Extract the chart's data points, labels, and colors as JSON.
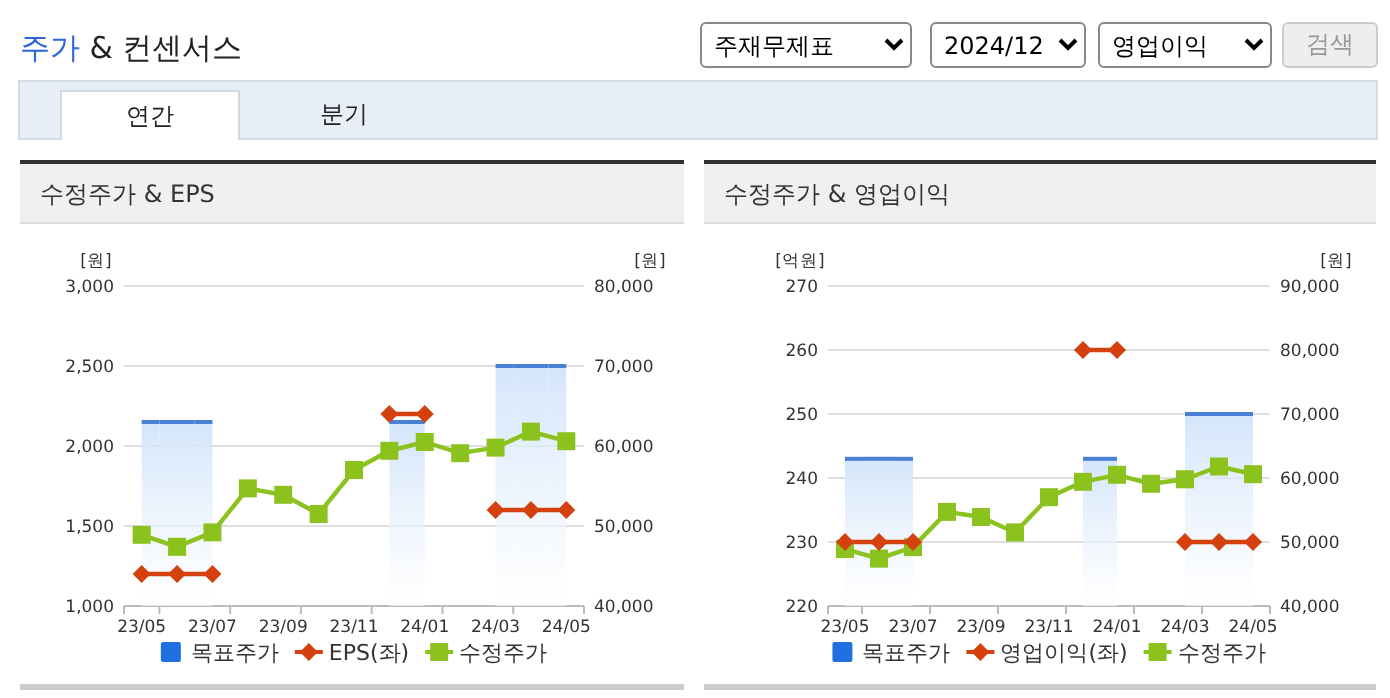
{
  "chart_data": [
    {
      "type": "other",
      "title": "주가 & 컨센서스",
      "annotations": [
        "주재무제표",
        "2024/12",
        "영업이익",
        "검색",
        "연간",
        "분기"
      ]
    },
    {
      "type": "line",
      "title": "수정주가 & EPS",
      "ylabel": "[원]",
      "y2label": "[원]",
      "categories": [
        "23/05",
        null,
        "23/07",
        null,
        "23/09",
        null,
        "23/11",
        null,
        "24/01",
        null,
        "24/03",
        null,
        "24/05"
      ],
      "ylim": [
        1000,
        3000
      ],
      "yticks": [
        {
          "value": 1000,
          "label": "1,000"
        },
        {
          "value": 1500,
          "label": "1,500"
        },
        {
          "value": 2000,
          "label": "2,000"
        },
        {
          "value": 2500,
          "label": "2,500"
        },
        {
          "value": 3000,
          "label": "3,000"
        }
      ],
      "y2lim": [
        40000,
        80000
      ],
      "y2ticks": [
        {
          "value": 40000,
          "label": "40,000"
        },
        {
          "value": 50000,
          "label": "50,000"
        },
        {
          "value": 60000,
          "label": "60,000"
        },
        {
          "value": 70000,
          "label": "70,000"
        },
        {
          "value": 80000,
          "label": "80,000"
        }
      ],
      "grid": "y",
      "legend": "bottom",
      "series": [
        {
          "name": "목표주가",
          "type": "bar",
          "axis": "y2",
          "color": "#4a7fd6",
          "values": [
            63000,
            63000,
            63000,
            null,
            null,
            null,
            null,
            63000,
            63000,
            null,
            70000,
            70000,
            70000
          ]
        },
        {
          "name": "EPS(좌)",
          "type": "line",
          "axis": "y",
          "color": "#d4400e",
          "marker": "diamond",
          "values": [
            1200,
            1200,
            1200,
            null,
            null,
            null,
            null,
            2200,
            2200,
            null,
            1600,
            1600,
            1600
          ]
        },
        {
          "name": "수정주가",
          "type": "line",
          "axis": "y2",
          "color": "#8cc21e",
          "marker": "square",
          "values": [
            48900,
            47400,
            49200,
            54700,
            53900,
            51500,
            57000,
            59400,
            60500,
            59100,
            59800,
            61800,
            60600
          ]
        }
      ]
    },
    {
      "type": "line",
      "title": "수정주가 & 영업이익",
      "ylabel": "[억원]",
      "y2label": "[원]",
      "categories": [
        "23/05",
        null,
        "23/07",
        null,
        "23/09",
        null,
        "23/11",
        null,
        "24/01",
        null,
        "24/03",
        null,
        "24/05"
      ],
      "ylim": [
        220,
        270
      ],
      "yticks": [
        220,
        230,
        240,
        250,
        260,
        270
      ],
      "y2lim": [
        40000,
        90000
      ],
      "y2ticks": [
        {
          "value": 40000,
          "label": "40,000"
        },
        {
          "value": 50000,
          "label": "50,000"
        },
        {
          "value": 60000,
          "label": "60,000"
        },
        {
          "value": 70000,
          "label": "70,000"
        },
        {
          "value": 80000,
          "label": "80,000"
        },
        {
          "value": 90000,
          "label": "90,000"
        }
      ],
      "grid": "y",
      "legend": "bottom",
      "series": [
        {
          "name": "목표주가",
          "type": "bar",
          "axis": "y2",
          "color": "#4a7fd6",
          "values": [
            63000,
            63000,
            63000,
            null,
            null,
            null,
            null,
            63000,
            63000,
            null,
            70000,
            70000,
            70000
          ]
        },
        {
          "name": "영업이익(좌)",
          "type": "line",
          "axis": "y",
          "color": "#d4400e",
          "marker": "diamond",
          "values": [
            230,
            230,
            230,
            null,
            null,
            null,
            null,
            260,
            260,
            null,
            230,
            230,
            230
          ]
        },
        {
          "name": "수정주가",
          "type": "line",
          "axis": "y2",
          "color": "#8cc21e",
          "marker": "square",
          "values": [
            48900,
            47400,
            49200,
            54700,
            53900,
            51500,
            57000,
            59400,
            60500,
            59100,
            59800,
            61800,
            60600
          ]
        }
      ]
    }
  ]
}
